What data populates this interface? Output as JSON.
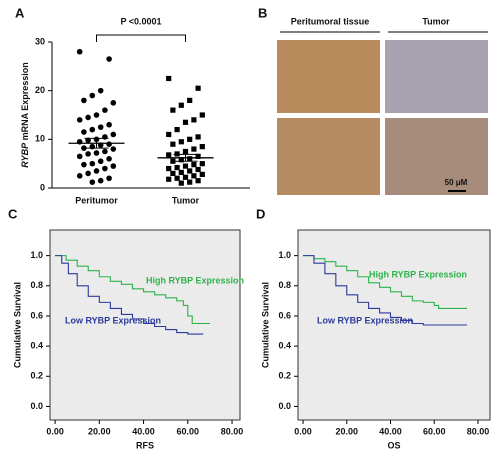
{
  "chart_data": [
    {
      "type": "dotplot",
      "label": "A",
      "ylabel": [
        "RYBP",
        "mRNA Expression"
      ],
      "annotation": "P <0.0001",
      "categories": [
        "Peritumor",
        "Tumor"
      ],
      "markers": [
        "circle",
        "square"
      ],
      "color": "#000000",
      "values": [
        [
          28,
          26.5,
          20,
          19,
          18,
          17.5,
          16,
          15,
          14.5,
          14,
          13,
          12.5,
          12,
          11.5,
          11,
          10.5,
          10,
          9.8,
          9.5,
          9,
          8.8,
          8.5,
          8.2,
          8,
          7.5,
          7.2,
          7,
          6.5,
          6,
          5.5,
          5,
          4.8,
          4.5,
          4,
          3.5,
          3,
          2.5,
          2,
          1.5,
          1.2
        ],
        [
          22.5,
          20.5,
          18,
          17,
          16,
          15,
          14,
          13.5,
          12,
          11,
          10.5,
          10,
          9.5,
          9,
          8.5,
          8,
          7.5,
          7,
          6.8,
          6.5,
          6,
          5.8,
          5.5,
          5,
          4.8,
          4.5,
          4.2,
          4,
          3.8,
          3.5,
          3.2,
          3,
          2.8,
          2.5,
          2.2,
          2,
          1.8,
          1.5,
          1.2,
          1
        ]
      ],
      "means": [
        9.2,
        6.2
      ],
      "sem": [
        1.0,
        0.7
      ],
      "ylim": [
        0,
        30
      ],
      "yticks": [
        0,
        10,
        20,
        30
      ]
    },
    {
      "type": "survival",
      "label": "C",
      "xlabel": "RFS",
      "ylabel": "Cumulative Survival",
      "xlim": [
        -2.3,
        83.6
      ],
      "ylim": [
        -0.09,
        1.17
      ],
      "xticks": [
        {
          "value": 0,
          "label": "0.00"
        },
        {
          "value": 20,
          "label": "20.00"
        },
        {
          "value": 40,
          "label": "40.00"
        },
        {
          "value": 60,
          "label": "60.00"
        },
        {
          "value": 80,
          "label": "80.00"
        }
      ],
      "yticks": [
        {
          "value": 0,
          "label": "0.0"
        },
        0.2,
        0.4,
        0.6,
        0.8,
        {
          "value": 1,
          "label": "1.0"
        }
      ],
      "series": [
        {
          "name": "High RYBP Expression",
          "color": "#2db34a",
          "x": [
            0,
            5,
            5,
            10,
            10,
            15,
            15,
            20,
            20,
            25,
            25,
            30,
            30,
            35,
            35,
            40,
            40,
            45,
            45,
            50,
            50,
            55,
            55,
            58,
            58,
            60,
            60,
            62,
            62,
            70
          ],
          "values": [
            1,
            1,
            0.97,
            0.97,
            0.93,
            0.93,
            0.9,
            0.9,
            0.86,
            0.86,
            0.83,
            0.83,
            0.81,
            0.81,
            0.78,
            0.78,
            0.76,
            0.76,
            0.74,
            0.74,
            0.72,
            0.72,
            0.7,
            0.7,
            0.67,
            0.67,
            0.6,
            0.6,
            0.55,
            0.55
          ]
        },
        {
          "name": "Low RYBP Expression",
          "color": "#2b3a9c",
          "x": [
            0,
            3,
            3,
            6,
            6,
            10,
            10,
            15,
            15,
            20,
            20,
            25,
            25,
            30,
            30,
            35,
            35,
            40,
            40,
            45,
            45,
            50,
            50,
            55,
            55,
            60,
            60,
            67
          ],
          "values": [
            1,
            1,
            0.95,
            0.95,
            0.88,
            0.88,
            0.8,
            0.8,
            0.73,
            0.73,
            0.69,
            0.69,
            0.65,
            0.65,
            0.61,
            0.61,
            0.58,
            0.58,
            0.55,
            0.55,
            0.53,
            0.53,
            0.51,
            0.51,
            0.49,
            0.49,
            0.48,
            0.48
          ]
        }
      ]
    },
    {
      "type": "survival",
      "label": "D",
      "xlabel": "OS",
      "ylabel": "Cumulative Survival",
      "xlim": [
        -2.3,
        85.5
      ],
      "ylim": [
        -0.09,
        1.17
      ],
      "xticks": [
        {
          "value": 0,
          "label": "0.00"
        },
        {
          "value": 20,
          "label": "20.00"
        },
        {
          "value": 40,
          "label": "40.00"
        },
        {
          "value": 60,
          "label": "60.00"
        },
        {
          "value": 80,
          "label": "80.00"
        }
      ],
      "yticks": [
        {
          "value": 0,
          "label": "0.0"
        },
        0.2,
        0.4,
        0.6,
        0.8,
        {
          "value": 1,
          "label": "1.0"
        }
      ],
      "series": [
        {
          "name": "High RYBP Expression",
          "color": "#2db34a",
          "x": [
            0,
            5,
            5,
            10,
            10,
            15,
            15,
            20,
            20,
            25,
            25,
            30,
            30,
            35,
            35,
            40,
            40,
            45,
            45,
            50,
            50,
            55,
            55,
            60,
            60,
            62,
            62,
            75
          ],
          "values": [
            1,
            1,
            0.98,
            0.98,
            0.96,
            0.96,
            0.93,
            0.93,
            0.9,
            0.9,
            0.86,
            0.86,
            0.82,
            0.82,
            0.79,
            0.79,
            0.76,
            0.76,
            0.73,
            0.73,
            0.7,
            0.7,
            0.69,
            0.69,
            0.67,
            0.67,
            0.65,
            0.65
          ]
        },
        {
          "name": "Low RYBP Expression",
          "color": "#2b3a9c",
          "x": [
            0,
            5,
            5,
            10,
            10,
            15,
            15,
            20,
            20,
            25,
            25,
            30,
            30,
            35,
            35,
            40,
            40,
            45,
            45,
            50,
            50,
            55,
            55,
            75
          ],
          "values": [
            1,
            1,
            0.95,
            0.95,
            0.88,
            0.88,
            0.8,
            0.8,
            0.74,
            0.74,
            0.69,
            0.69,
            0.65,
            0.65,
            0.62,
            0.62,
            0.59,
            0.59,
            0.57,
            0.57,
            0.55,
            0.55,
            0.54,
            0.54
          ]
        }
      ]
    }
  ],
  "panel_b": {
    "label": "B",
    "headers": [
      "Peritumoral tissue",
      "Tumor"
    ],
    "scale_bar": "50 μM"
  }
}
